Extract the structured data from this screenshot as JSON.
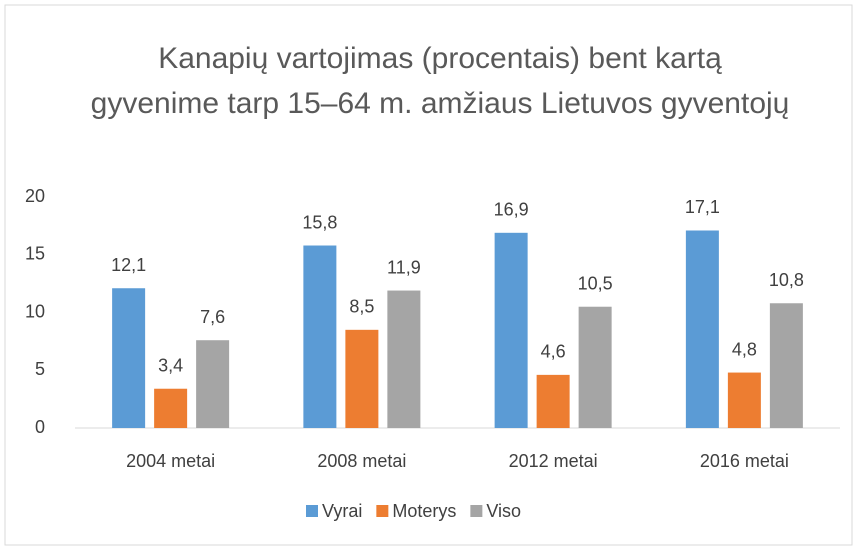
{
  "chart_data": {
    "type": "bar",
    "title": "Kanapių vartojimas (procentais) bent kartą gyvenime tarp 15–64 m. amžiaus Lietuvos gyventojų",
    "categories": [
      "2004 metai",
      "2008 metai",
      "2012 metai",
      "2016 metai"
    ],
    "series": [
      {
        "name": "Vyrai",
        "color": "#5b9bd5",
        "values": [
          12.1,
          15.8,
          16.9,
          17.1
        ],
        "value_labels": [
          "12,1",
          "15,8",
          "16,9",
          "17,1"
        ]
      },
      {
        "name": "Moterys",
        "color": "#ed7d31",
        "values": [
          3.4,
          8.5,
          4.6,
          4.8
        ],
        "value_labels": [
          "3,4",
          "8,5",
          "4,6",
          "4,8"
        ]
      },
      {
        "name": "Viso",
        "color": "#a5a5a5",
        "values": [
          7.6,
          11.9,
          10.5,
          10.8
        ],
        "value_labels": [
          "7,6",
          "11,9",
          "10,5",
          "10,8"
        ]
      }
    ],
    "ylim": [
      0,
      20
    ],
    "yticks": [
      0,
      5,
      10,
      15,
      20
    ],
    "grid": false,
    "legend": "bottom"
  }
}
